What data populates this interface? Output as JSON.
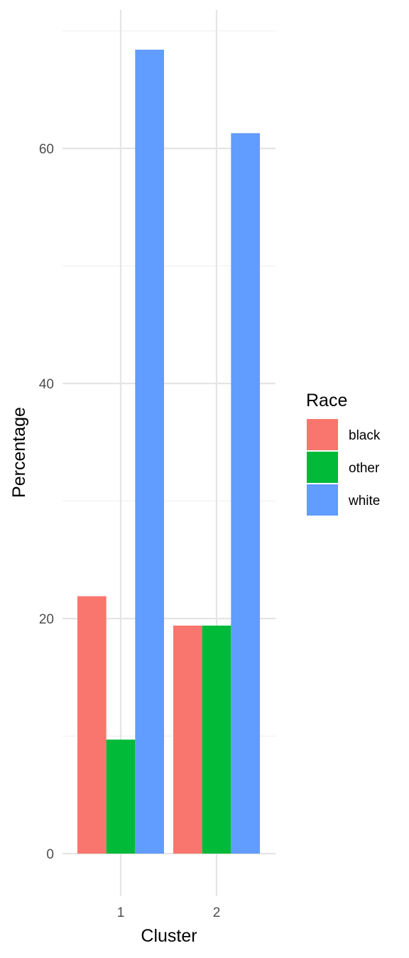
{
  "chart_data": {
    "type": "bar",
    "xlabel": "Cluster",
    "ylabel": "Percentage",
    "categories": [
      "1",
      "2"
    ],
    "series": [
      {
        "name": "black",
        "color": "#F8766D",
        "values": [
          21.9,
          19.4
        ]
      },
      {
        "name": "other",
        "color": "#00BA38",
        "values": [
          9.7,
          19.4
        ]
      },
      {
        "name": "white",
        "color": "#619CFF",
        "values": [
          68.4,
          61.3
        ]
      }
    ],
    "ylim": [
      0,
      70
    ],
    "yticks": [
      0,
      20,
      40,
      60
    ],
    "grid": true,
    "legend": {
      "title": "Race",
      "position": "right",
      "items": [
        "black",
        "other",
        "white"
      ]
    }
  }
}
